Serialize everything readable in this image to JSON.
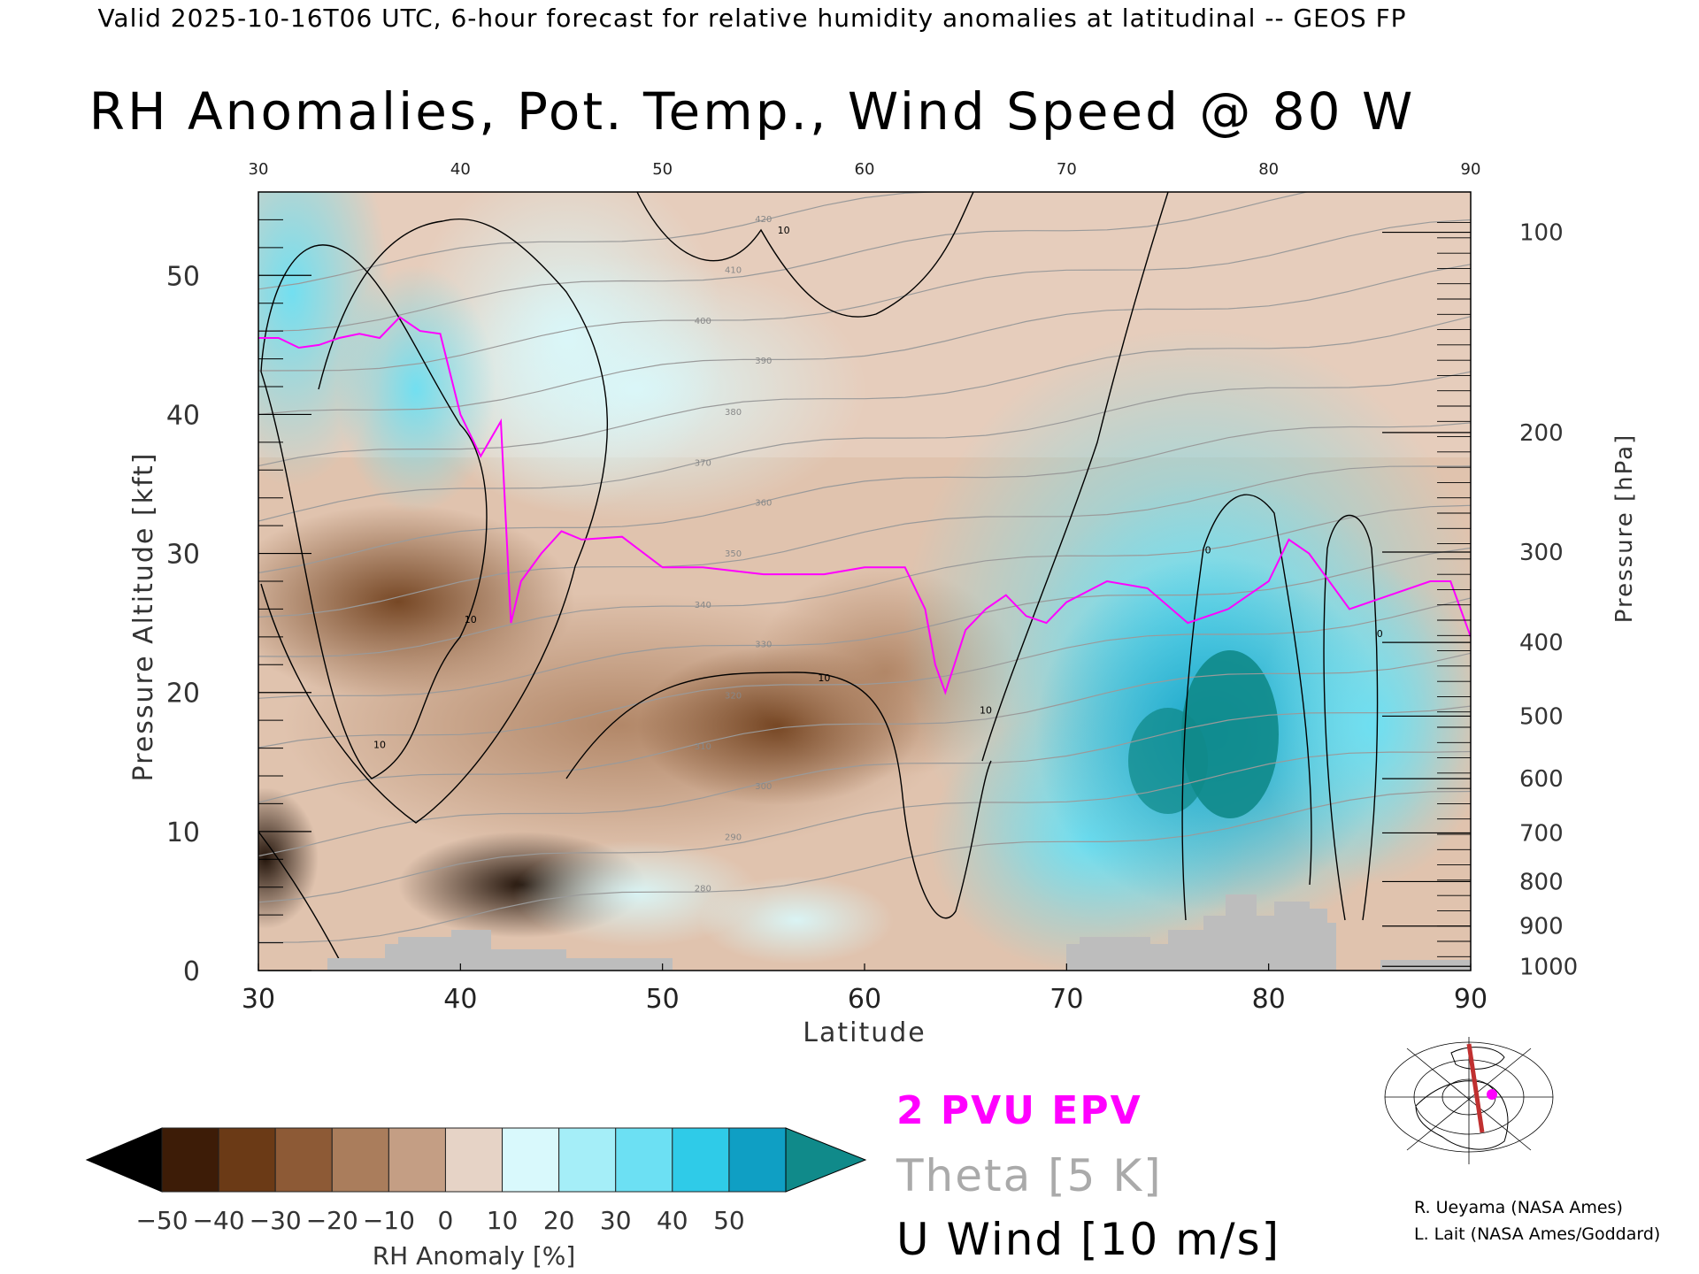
{
  "header": {
    "top_line": "Valid 2025-10-16T06 UTC, 6-hour forecast for relative humidity anomalies at latitudinal -- GEOS FP",
    "title": "RH Anomalies, Pot. Temp., Wind Speed @ 80 W"
  },
  "chart_data": {
    "type": "heatmap",
    "title": "RH Anomalies, Pot. Temp., Wind Speed @ 80 W",
    "xlabel": "Latitude",
    "ylabel": "Pressure Altitude [kft]",
    "ylabel_right": "Pressure [hPa]",
    "xlim": [
      30,
      90
    ],
    "ylim": [
      0,
      56
    ],
    "x_ticks": [
      "30",
      "40",
      "50",
      "60",
      "70",
      "80",
      "90"
    ],
    "y_ticks": [
      "0",
      "10",
      "20",
      "30",
      "40",
      "50"
    ],
    "pressure_ticks": [
      {
        "label": "100",
        "kft": 53.1
      },
      {
        "label": "200",
        "kft": 38.7
      },
      {
        "label": "300",
        "kft": 30.1
      },
      {
        "label": "400",
        "kft": 23.6
      },
      {
        "label": "500",
        "kft": 18.3
      },
      {
        "label": "600",
        "kft": 13.8
      },
      {
        "label": "700",
        "kft": 9.9
      },
      {
        "label": "800",
        "kft": 6.4
      },
      {
        "label": "900",
        "kft": 3.2
      },
      {
        "label": "1000",
        "kft": 0.3
      }
    ],
    "colorbar": {
      "label": "RH Anomaly [%]",
      "ticks": [
        "-50",
        "-40",
        "-30",
        "-20",
        "-10",
        "0",
        "10",
        "20",
        "30",
        "40",
        "50"
      ],
      "colors": [
        "#3d1c07",
        "#6b3a16",
        "#8d5a36",
        "#aa7d5c",
        "#c49e84",
        "#e6d3c6",
        "#d9f9fc",
        "#a5eef8",
        "#6ce0f3",
        "#2fcbe8",
        "#0f9fc4"
      ],
      "under_color": "#000000",
      "over_color": "#108a8a"
    },
    "theta_contours_K": [
      "280",
      "290",
      "300",
      "310",
      "320",
      "330",
      "340",
      "350",
      "360",
      "370",
      "380",
      "390",
      "400",
      "410",
      "420"
    ],
    "wind_contour_labels": [
      "10",
      "0"
    ],
    "series": [
      {
        "name": "2 PVU EPV",
        "color": "#ff00ff",
        "x": [
          30,
          31,
          32,
          33,
          34,
          35,
          36,
          37,
          38,
          39,
          40,
          41,
          42,
          42.5,
          43,
          44,
          45,
          46,
          48,
          50,
          52,
          55,
          58,
          60,
          62,
          63,
          63.5,
          64,
          65,
          66,
          67,
          68,
          69,
          70,
          72,
          74,
          76,
          78,
          80,
          81,
          82,
          84,
          86,
          88,
          89,
          90
        ],
        "y": [
          45.5,
          45.5,
          44.8,
          45,
          45.5,
          45.8,
          45.5,
          47,
          46,
          45.8,
          40,
          37,
          39.5,
          25,
          28,
          30,
          31.6,
          31,
          31.2,
          29,
          29,
          28.5,
          28.5,
          29,
          29,
          26,
          22,
          20,
          24.5,
          26,
          27,
          25.5,
          25,
          26.5,
          28,
          27.5,
          25,
          26,
          28,
          31,
          30,
          26,
          27,
          28,
          28,
          24
        ]
      },
      {
        "name": "Theta [5 K]",
        "color": "#aaaaaa"
      },
      {
        "name": "U Wind [10 m/s]",
        "color": "#000000"
      }
    ]
  },
  "legend": {
    "epv": "2 PVU EPV",
    "theta": "Theta [5 K]",
    "wind": "U Wind [10 m/s]"
  },
  "credits": {
    "line1": "R. Ueyama (NASA Ames)",
    "line2": "L. Lait (NASA Ames/Goddard)"
  },
  "map_inset": {
    "cross_section_color": "#c03030",
    "marker_color": "#ff00ff"
  }
}
